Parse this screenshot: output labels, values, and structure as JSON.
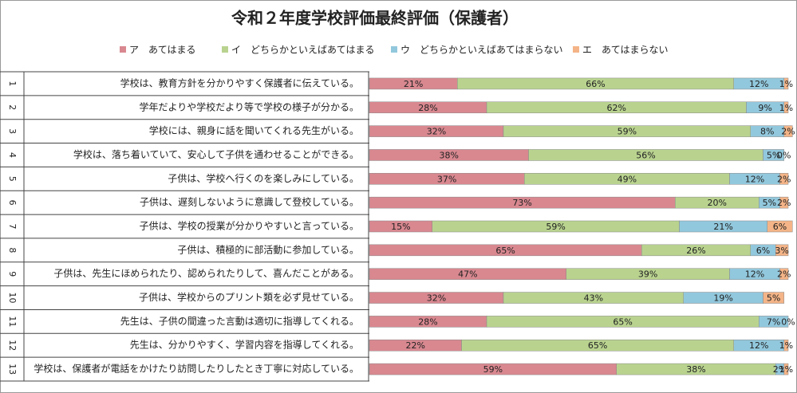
{
  "chart_data": {
    "type": "stacked-bar-horizontal",
    "title": "令和２年度学校評価最終評価（保護者）",
    "category_numbers": [
      "1",
      "2",
      "3",
      "4",
      "5",
      "6",
      "7",
      "8",
      "9",
      "10",
      "11",
      "12",
      "13"
    ],
    "categories": [
      "学校は、教育方針を分かりやすく保護者に伝えている。",
      "学年だよりや学校だより等で学校の様子が分かる。",
      "学校には、親身に話を聞いてくれる先生がいる。",
      "学校は、落ち着いていて、安心して子供を通わせることができる。",
      "子供は、学校へ行くのを楽しみにしている。",
      "子供は、遅刻しないように意識して登校している。",
      "子供は、学校の授業が分かりやすいと言っている。",
      "子供は、積極的に部活動に参加している。",
      "子供は、先生にほめられたり、認められたりして、喜んだことがある。",
      "子供は、学校からのプリント類を必ず見せている。",
      "先生は、子供の間違った言動は適切に指導してくれる。",
      "先生は、分かりやすく、学習内容を指導してくれる。",
      "学校は、保護者が電話をかけたり訪問したりしたとき丁寧に対応している。"
    ],
    "xlim": [
      0,
      100
    ],
    "series": [
      {
        "name": "ア　あてはまる",
        "color": "#d98890",
        "values": [
          21,
          28,
          32,
          38,
          37,
          73,
          15,
          65,
          47,
          32,
          28,
          22,
          59
        ],
        "value_labels": [
          "21%",
          "28%",
          "32%",
          "38%",
          "37%",
          "73%",
          "15%",
          "65%",
          "47%",
          "32%",
          "28%",
          "22%",
          "59%"
        ]
      },
      {
        "name": "イ　どちらかといえばあてはまる",
        "color": "#b9d38f",
        "values": [
          66,
          62,
          59,
          56,
          49,
          20,
          59,
          26,
          39,
          43,
          65,
          65,
          38
        ],
        "value_labels": [
          "66%",
          "62%",
          "59%",
          "56%",
          "49%",
          "20%",
          "59%",
          "26%",
          "39%",
          "43%",
          "65%",
          "65%",
          "38%"
        ]
      },
      {
        "name": "ウ　どちらかといえばあてはまらない",
        "color": "#92c8dd",
        "values": [
          12,
          9,
          8,
          5,
          12,
          5,
          21,
          6,
          12,
          19,
          7,
          12,
          2
        ],
        "value_labels": [
          "12%",
          "9%",
          "8%",
          "5%",
          "12%",
          "5%",
          "21%",
          "6%",
          "12%",
          "19%",
          "7%",
          "12%",
          "2%"
        ]
      },
      {
        "name": "エ　あてはまらない",
        "color": "#f4b487",
        "values": [
          1,
          1,
          2,
          0,
          2,
          2,
          6,
          3,
          2,
          5,
          0,
          1,
          1
        ],
        "value_labels": [
          "1%",
          "1%",
          "2%",
          "0%",
          "2%",
          "2%",
          "6%",
          "3%",
          "2%",
          "5%",
          "0%",
          "1%",
          "1%"
        ]
      }
    ]
  }
}
